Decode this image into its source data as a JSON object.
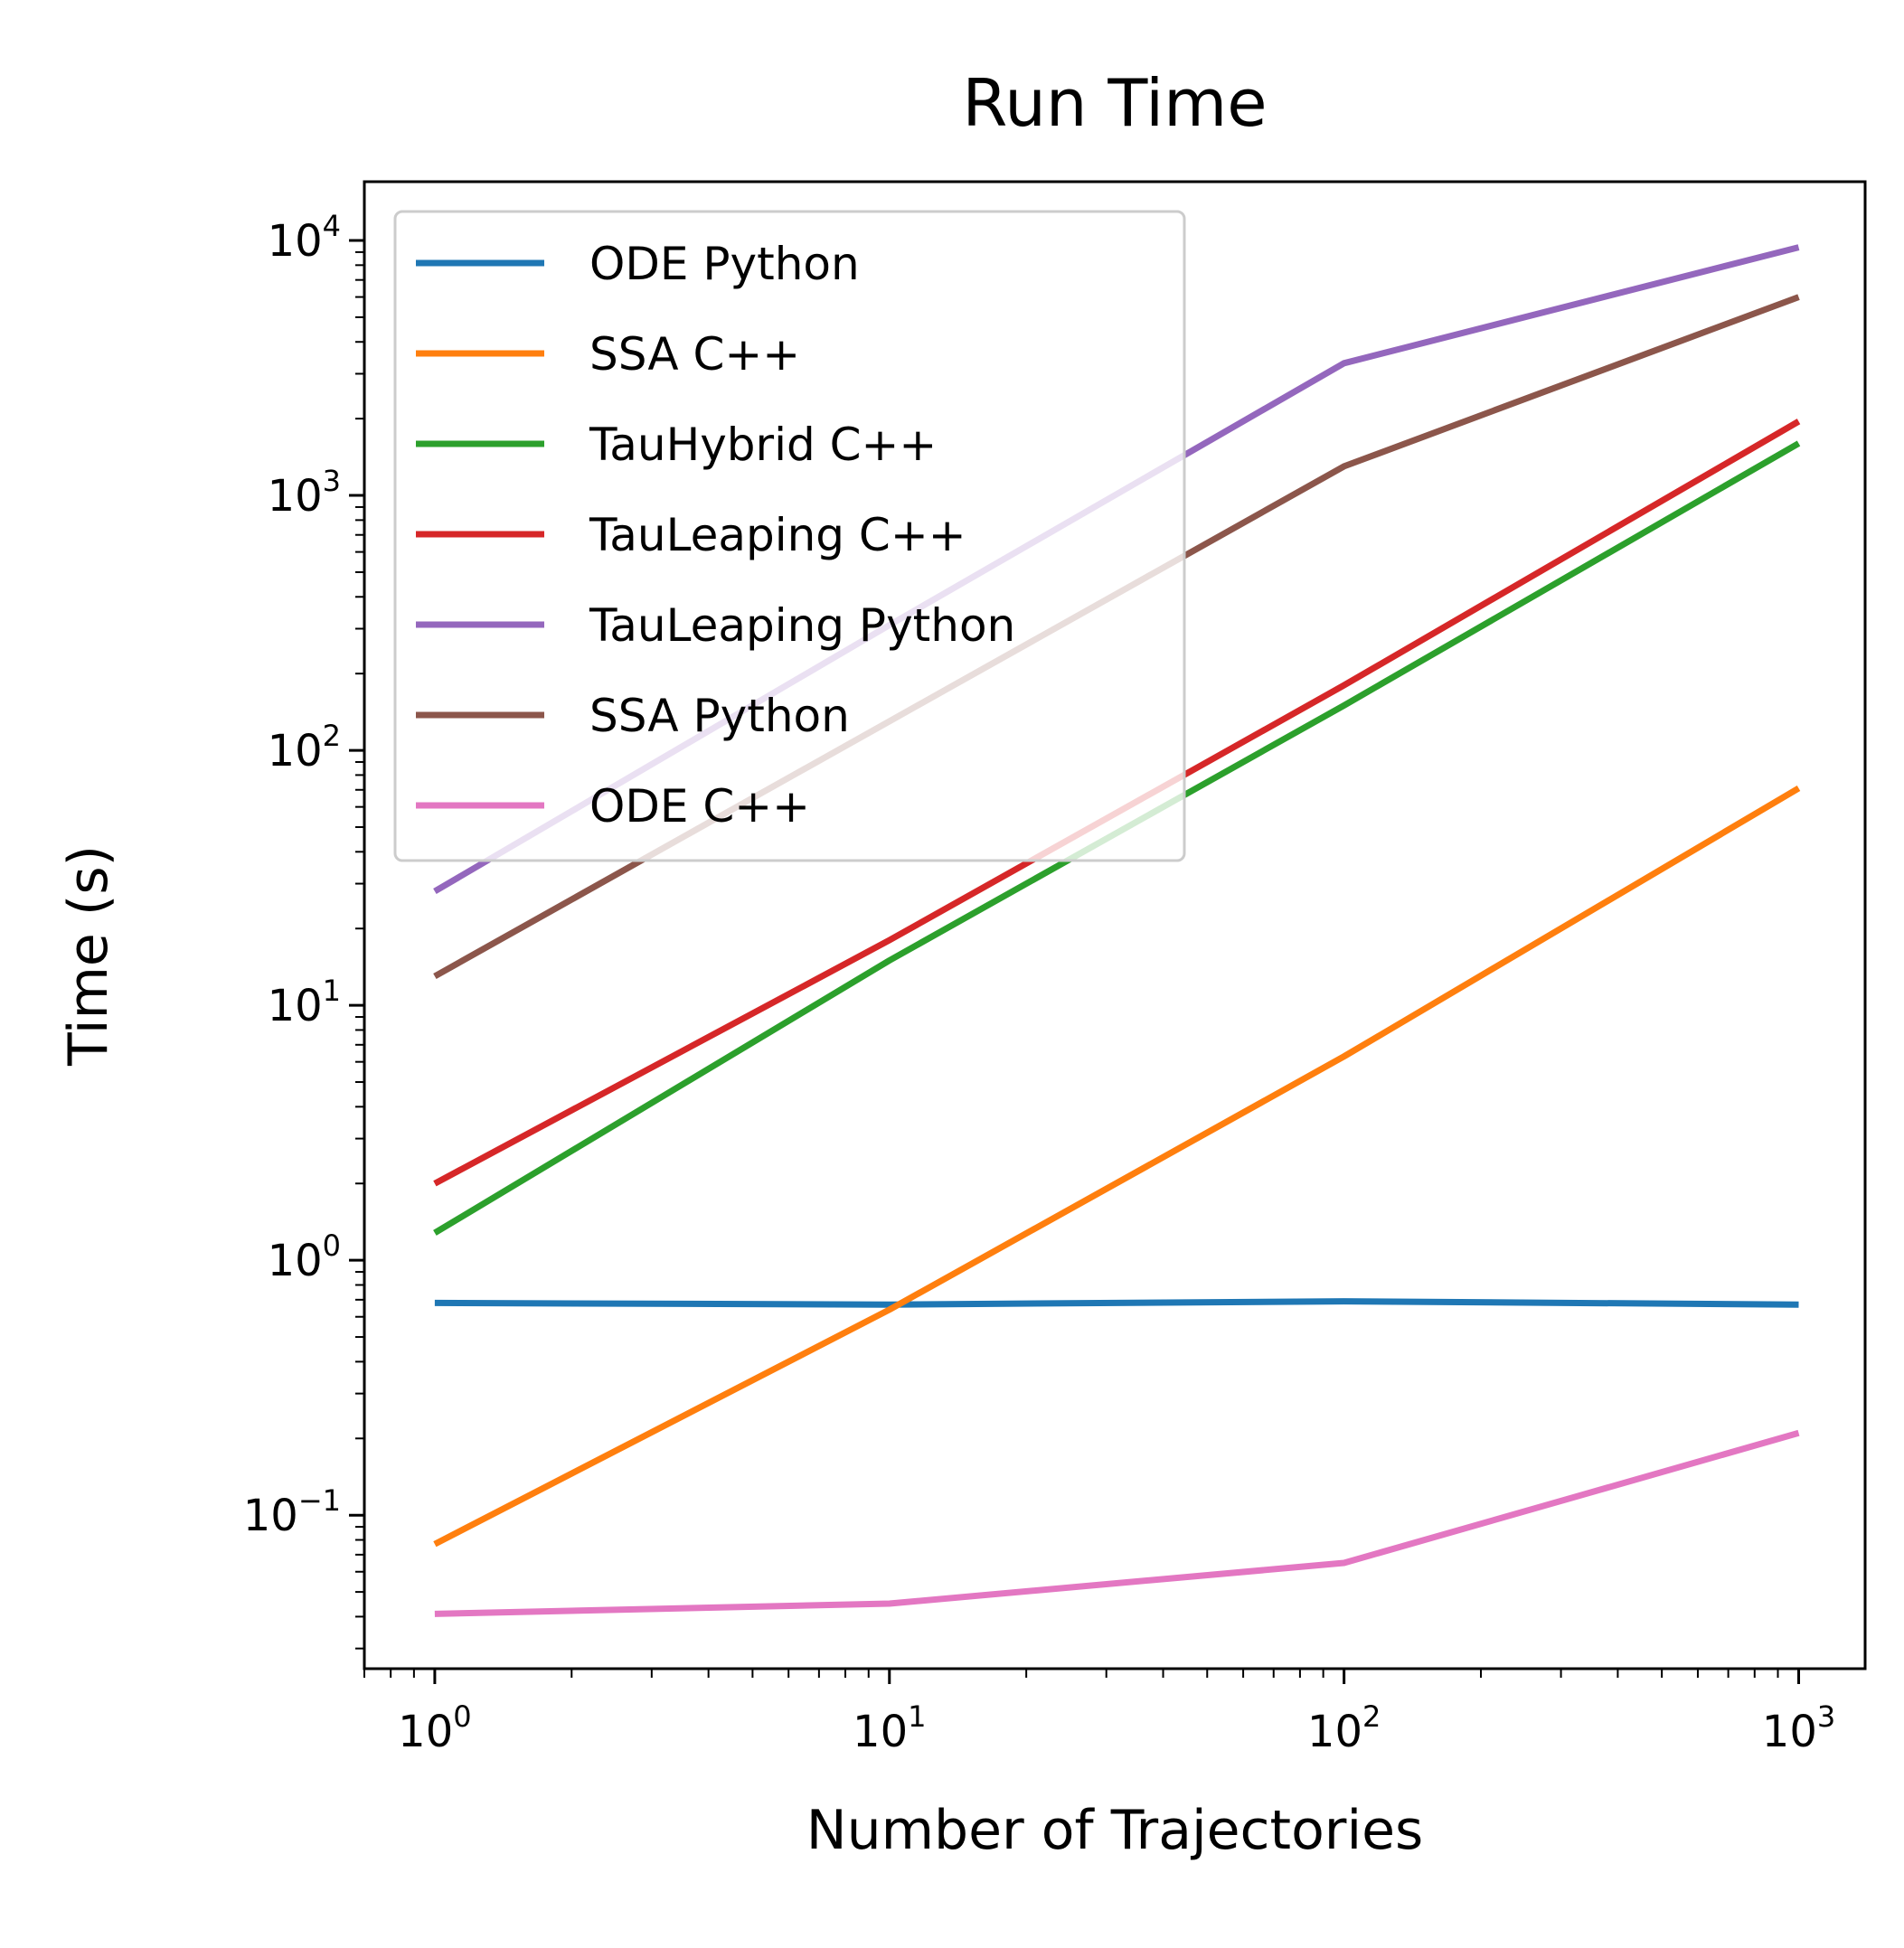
{
  "chart_data": {
    "type": "line",
    "title": "Run Time",
    "xlabel": "Number of Trajectories",
    "ylabel": "Time (s)",
    "x_scale": "log",
    "y_scale": "log",
    "xlim": [
      0.7,
      1400
    ],
    "ylim": [
      0.025,
      17000
    ],
    "x": [
      1,
      10,
      100,
      1000
    ],
    "x_ticks": [
      {
        "value": 1,
        "base": "10",
        "exp": "0"
      },
      {
        "value": 10,
        "base": "10",
        "exp": "1"
      },
      {
        "value": 100,
        "base": "10",
        "exp": "2"
      },
      {
        "value": 1000,
        "base": "10",
        "exp": "3"
      }
    ],
    "y_ticks": [
      {
        "value": 0.1,
        "base": "10",
        "exp": "−1"
      },
      {
        "value": 1,
        "base": "10",
        "exp": "0"
      },
      {
        "value": 10,
        "base": "10",
        "exp": "1"
      },
      {
        "value": 100,
        "base": "10",
        "exp": "2"
      },
      {
        "value": 1000,
        "base": "10",
        "exp": "3"
      },
      {
        "value": 10000,
        "base": "10",
        "exp": "4"
      }
    ],
    "legend_position": "upper-left",
    "grid": false,
    "series": [
      {
        "name": "ODE Python",
        "color": "#1f77b4",
        "values": [
          0.68,
          0.67,
          0.69,
          0.67
        ]
      },
      {
        "name": "SSA C++",
        "color": "#ff7f0e",
        "values": [
          0.077,
          0.64,
          6.3,
          71
        ]
      },
      {
        "name": "TauHybrid C++",
        "color": "#2ca02c",
        "values": [
          1.28,
          15,
          150,
          1600
        ]
      },
      {
        "name": "TauLeaping C++",
        "color": "#d62728",
        "values": [
          2.0,
          18,
          180,
          1950
        ]
      },
      {
        "name": "TauLeaping Python",
        "color": "#9467bd",
        "values": [
          28,
          310,
          3300,
          9400
        ]
      },
      {
        "name": "SSA Python",
        "color": "#8c564b",
        "values": [
          13,
          130,
          1300,
          6000
        ]
      },
      {
        "name": "ODE C++",
        "color": "#e377c2",
        "values": [
          0.041,
          0.045,
          0.065,
          0.21
        ]
      }
    ]
  }
}
